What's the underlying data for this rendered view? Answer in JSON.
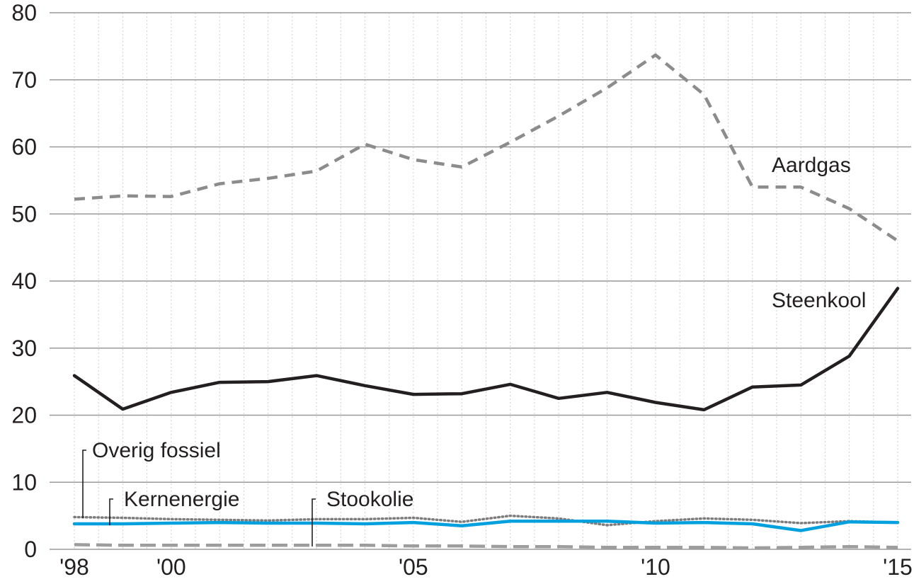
{
  "chart_data": {
    "type": "line",
    "x": [
      1998,
      1999,
      2000,
      2001,
      2002,
      2003,
      2004,
      2005,
      2006,
      2007,
      2008,
      2009,
      2010,
      2011,
      2012,
      2013,
      2014,
      2015
    ],
    "x_ticks": [
      {
        "value": 1998,
        "label": "'98"
      },
      {
        "value": 2000,
        "label": "'00"
      },
      {
        "value": 2005,
        "label": "'05"
      },
      {
        "value": 2010,
        "label": "'10"
      },
      {
        "value": 2015,
        "label": "'15"
      }
    ],
    "y_ticks": [
      0,
      10,
      20,
      30,
      40,
      50,
      60,
      70,
      80
    ],
    "ylim": [
      0,
      80
    ],
    "xlim": [
      1998,
      2015
    ],
    "grid": true,
    "series": [
      {
        "name": "Aardgas",
        "style": "dashed",
        "color": "#8c8c8c",
        "values": [
          52.2,
          52.7,
          52.6,
          54.5,
          55.3,
          56.4,
          60.4,
          58.1,
          57.0,
          60.7,
          64.6,
          68.8,
          73.7,
          67.8,
          54.0,
          54.0,
          50.8,
          46.0
        ]
      },
      {
        "name": "Steenkool",
        "style": "solid",
        "color": "#231f20",
        "values": [
          25.9,
          20.9,
          23.4,
          24.9,
          25.0,
          25.9,
          24.4,
          23.1,
          23.2,
          24.6,
          22.5,
          23.4,
          21.9,
          20.8,
          24.2,
          24.5,
          28.8,
          38.9
        ]
      },
      {
        "name": "Overig fossiel",
        "style": "dotted",
        "color": "#7d7d7d",
        "values": [
          4.8,
          4.7,
          4.5,
          4.4,
          4.3,
          4.5,
          4.5,
          4.7,
          4.1,
          5.0,
          4.6,
          3.6,
          4.2,
          4.6,
          4.4,
          3.9,
          4.2,
          4.0
        ]
      },
      {
        "name": "Kernenergie",
        "style": "solid",
        "color": "#00a0df",
        "values": [
          3.8,
          3.8,
          3.9,
          4.0,
          3.9,
          3.9,
          3.8,
          4.0,
          3.5,
          4.2,
          4.2,
          4.2,
          3.9,
          4.0,
          3.8,
          2.8,
          4.1,
          4.0
        ]
      },
      {
        "name": "Stookolie",
        "style": "longdash",
        "color": "#9d9d9d",
        "values": [
          0.7,
          0.6,
          0.6,
          0.6,
          0.6,
          0.6,
          0.6,
          0.5,
          0.5,
          0.4,
          0.4,
          0.3,
          0.3,
          0.3,
          0.2,
          0.3,
          0.4,
          0.3
        ]
      }
    ],
    "series_labels": [
      "Aardgas",
      "Steenkool",
      "Overig fossiel",
      "Kernenergie",
      "Stookolie"
    ]
  }
}
